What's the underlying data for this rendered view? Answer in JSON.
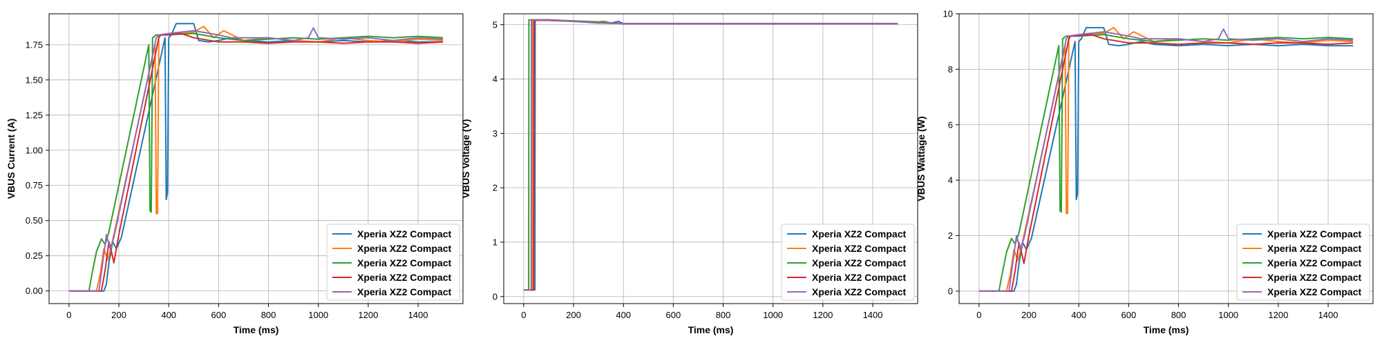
{
  "colors": [
    "#1f77b4",
    "#ff7f0e",
    "#2ca02c",
    "#d62728",
    "#9467bd"
  ],
  "chart_data": [
    {
      "type": "line",
      "xlabel": "Time (ms)",
      "ylabel": "VBUS Current (A)",
      "xlim": [
        -80,
        1580
      ],
      "ylim": [
        -0.09,
        1.97
      ],
      "xticks": [
        0,
        200,
        400,
        600,
        800,
        1000,
        1200,
        1400
      ],
      "yticks": [
        0.0,
        0.25,
        0.5,
        0.75,
        1.0,
        1.25,
        1.5,
        1.75
      ],
      "ytick_labels": [
        "0.00",
        "0.25",
        "0.50",
        "0.75",
        "1.00",
        "1.25",
        "1.50",
        "1.75"
      ],
      "grid": true,
      "legend_position": "lower right",
      "series": [
        {
          "name": "Xperia XZ2 Compact",
          "x": [
            0,
            140,
            150,
            160,
            175,
            190,
            210,
            385,
            390,
            395,
            400,
            410,
            430,
            500,
            520,
            560,
            600,
            650,
            700,
            800,
            900,
            1000,
            1100,
            1200,
            1300,
            1400,
            1500
          ],
          "y": [
            0.0,
            0.0,
            0.05,
            0.2,
            0.35,
            0.3,
            0.38,
            1.8,
            0.65,
            0.7,
            1.8,
            1.82,
            1.9,
            1.9,
            1.78,
            1.77,
            1.78,
            1.8,
            1.78,
            1.77,
            1.78,
            1.77,
            1.78,
            1.77,
            1.78,
            1.77,
            1.77
          ]
        },
        {
          "name": "Xperia XZ2 Compact",
          "x": [
            0,
            110,
            125,
            140,
            155,
            170,
            345,
            350,
            355,
            360,
            370,
            400,
            500,
            540,
            580,
            620,
            700,
            800,
            900,
            1000,
            1100,
            1200,
            1300,
            1400,
            1500
          ],
          "y": [
            0.0,
            0.0,
            0.12,
            0.3,
            0.22,
            0.32,
            1.75,
            0.55,
            0.55,
            1.8,
            1.82,
            1.82,
            1.84,
            1.88,
            1.8,
            1.85,
            1.78,
            1.8,
            1.78,
            1.77,
            1.8,
            1.78,
            1.77,
            1.79,
            1.78
          ]
        },
        {
          "name": "Xperia XZ2 Compact",
          "x": [
            0,
            80,
            90,
            110,
            130,
            145,
            160,
            320,
            325,
            330,
            335,
            350,
            400,
            500,
            600,
            700,
            800,
            900,
            1000,
            1100,
            1200,
            1300,
            1400,
            1500
          ],
          "y": [
            0.0,
            0.0,
            0.1,
            0.28,
            0.37,
            0.33,
            0.42,
            1.75,
            0.57,
            0.56,
            1.8,
            1.82,
            1.82,
            1.83,
            1.8,
            1.78,
            1.79,
            1.8,
            1.79,
            1.8,
            1.81,
            1.8,
            1.81,
            1.8
          ]
        },
        {
          "name": "Xperia XZ2 Compact",
          "x": [
            0,
            130,
            145,
            160,
            170,
            180,
            200,
            360,
            365,
            380,
            450,
            500,
            600,
            700,
            800,
            900,
            1000,
            1100,
            1200,
            1300,
            1400,
            1500
          ],
          "y": [
            0.0,
            0.0,
            0.15,
            0.35,
            0.28,
            0.2,
            0.4,
            1.8,
            1.82,
            1.82,
            1.83,
            1.8,
            1.77,
            1.77,
            1.76,
            1.77,
            1.77,
            1.76,
            1.77,
            1.77,
            1.76,
            1.77
          ]
        },
        {
          "name": "Xperia XZ2 Compact",
          "x": [
            0,
            120,
            135,
            150,
            165,
            180,
            350,
            360,
            400,
            500,
            600,
            650,
            700,
            800,
            900,
            960,
            980,
            1000,
            1100,
            1200,
            1300,
            1400,
            1500
          ],
          "y": [
            0.0,
            0.0,
            0.2,
            0.4,
            0.3,
            0.38,
            1.8,
            1.82,
            1.83,
            1.85,
            1.82,
            1.8,
            1.8,
            1.8,
            1.78,
            1.8,
            1.87,
            1.8,
            1.79,
            1.8,
            1.78,
            1.8,
            1.79
          ]
        }
      ]
    },
    {
      "type": "line",
      "xlabel": "Time (ms)",
      "ylabel": "VBUS Voltage (V)",
      "xlim": [
        -80,
        1580
      ],
      "ylim": [
        -0.13,
        5.2
      ],
      "xticks": [
        0,
        200,
        400,
        600,
        800,
        1000,
        1200,
        1400
      ],
      "yticks": [
        0,
        1,
        2,
        3,
        4,
        5
      ],
      "ytick_labels": [
        "0",
        "1",
        "2",
        "3",
        "4",
        "5"
      ],
      "grid": true,
      "legend_position": "lower right",
      "series": [
        {
          "name": "Xperia XZ2 Compact",
          "x": [
            0,
            45,
            46,
            100,
            200,
            300,
            350,
            380,
            390,
            400,
            500,
            600,
            800,
            1000,
            1200,
            1500
          ],
          "y": [
            0.12,
            0.12,
            5.08,
            5.08,
            5.06,
            5.04,
            5.03,
            5.06,
            5.04,
            5.02,
            5.02,
            5.02,
            5.02,
            5.02,
            5.02,
            5.02
          ]
        },
        {
          "name": "Xperia XZ2 Compact",
          "x": [
            0,
            35,
            36,
            100,
            200,
            300,
            330,
            340,
            360,
            400,
            500,
            800,
            1000,
            1500
          ],
          "y": [
            0.12,
            0.12,
            5.09,
            5.09,
            5.07,
            5.04,
            5.06,
            5.04,
            5.03,
            5.02,
            5.02,
            5.02,
            5.02,
            5.02
          ]
        },
        {
          "name": "Xperia XZ2 Compact",
          "x": [
            0,
            20,
            21,
            100,
            200,
            300,
            320,
            330,
            400,
            500,
            800,
            1000,
            1500
          ],
          "y": [
            0.12,
            0.12,
            5.09,
            5.09,
            5.07,
            5.05,
            5.06,
            5.04,
            5.02,
            5.02,
            5.02,
            5.02,
            5.02
          ]
        },
        {
          "name": "Xperia XZ2 Compact",
          "x": [
            0,
            40,
            41,
            100,
            200,
            300,
            400,
            500,
            800,
            1000,
            1500
          ],
          "y": [
            0.12,
            0.12,
            5.08,
            5.08,
            5.06,
            5.03,
            5.02,
            5.02,
            5.02,
            5.02,
            5.02
          ]
        },
        {
          "name": "Xperia XZ2 Compact",
          "x": [
            0,
            30,
            31,
            100,
            200,
            300,
            400,
            500,
            800,
            1000,
            1500
          ],
          "y": [
            0.12,
            0.12,
            5.09,
            5.09,
            5.06,
            5.03,
            5.02,
            5.02,
            5.02,
            5.02,
            5.02
          ]
        }
      ]
    },
    {
      "type": "line",
      "xlabel": "Time (ms)",
      "ylabel": "VBUS Wattage (W)",
      "xlim": [
        -80,
        1580
      ],
      "ylim": [
        -0.45,
        10.0
      ],
      "xticks": [
        0,
        200,
        400,
        600,
        800,
        1000,
        1200,
        1400
      ],
      "yticks": [
        0,
        2,
        4,
        6,
        8,
        10
      ],
      "ytick_labels": [
        "0",
        "2",
        "4",
        "6",
        "8",
        "10"
      ],
      "grid": true,
      "legend_position": "lower right",
      "series": [
        {
          "name": "Xperia XZ2 Compact",
          "x": [
            0,
            140,
            150,
            160,
            175,
            190,
            210,
            385,
            390,
            395,
            400,
            410,
            430,
            500,
            520,
            560,
            600,
            650,
            700,
            800,
            900,
            1000,
            1100,
            1200,
            1300,
            1400,
            1500
          ],
          "y": [
            0.0,
            0.0,
            0.25,
            1.0,
            1.75,
            1.5,
            1.9,
            9.0,
            3.3,
            3.5,
            9.0,
            9.1,
            9.5,
            9.5,
            8.9,
            8.85,
            8.9,
            9.0,
            8.9,
            8.85,
            8.9,
            8.85,
            8.9,
            8.85,
            8.9,
            8.85,
            8.85
          ]
        },
        {
          "name": "Xperia XZ2 Compact",
          "x": [
            0,
            110,
            125,
            140,
            155,
            170,
            345,
            350,
            355,
            360,
            370,
            400,
            500,
            540,
            580,
            620,
            700,
            800,
            900,
            1000,
            1100,
            1200,
            1300,
            1400,
            1500
          ],
          "y": [
            0.0,
            0.0,
            0.6,
            1.5,
            1.1,
            1.6,
            8.8,
            2.8,
            2.8,
            9.1,
            9.2,
            9.2,
            9.3,
            9.5,
            9.1,
            9.35,
            9.0,
            9.1,
            9.0,
            8.95,
            9.1,
            9.0,
            8.95,
            9.05,
            9.0
          ]
        },
        {
          "name": "Xperia XZ2 Compact",
          "x": [
            0,
            80,
            90,
            110,
            130,
            145,
            160,
            320,
            325,
            330,
            335,
            350,
            400,
            500,
            600,
            700,
            800,
            900,
            1000,
            1100,
            1200,
            1300,
            1400,
            1500
          ],
          "y": [
            0.0,
            0.0,
            0.5,
            1.4,
            1.9,
            1.7,
            2.1,
            8.85,
            2.9,
            2.85,
            9.1,
            9.2,
            9.2,
            9.25,
            9.1,
            9.0,
            9.05,
            9.1,
            9.05,
            9.1,
            9.15,
            9.1,
            9.15,
            9.1
          ]
        },
        {
          "name": "Xperia XZ2 Compact",
          "x": [
            0,
            130,
            145,
            160,
            170,
            180,
            200,
            360,
            365,
            380,
            450,
            500,
            600,
            700,
            800,
            900,
            1000,
            1100,
            1200,
            1300,
            1400,
            1500
          ],
          "y": [
            0.0,
            0.0,
            0.75,
            1.75,
            1.4,
            1.0,
            2.0,
            9.1,
            9.2,
            9.2,
            9.25,
            9.1,
            8.95,
            8.95,
            8.9,
            8.95,
            8.95,
            8.9,
            8.95,
            8.95,
            8.9,
            8.95
          ]
        },
        {
          "name": "Xperia XZ2 Compact",
          "x": [
            0,
            120,
            135,
            150,
            165,
            180,
            350,
            360,
            400,
            500,
            600,
            650,
            700,
            800,
            900,
            960,
            980,
            1000,
            1100,
            1200,
            1300,
            1400,
            1500
          ],
          "y": [
            0.0,
            0.0,
            1.0,
            2.0,
            1.5,
            1.9,
            9.1,
            9.2,
            9.25,
            9.35,
            9.2,
            9.1,
            9.1,
            9.1,
            9.0,
            9.1,
            9.45,
            9.1,
            9.05,
            9.1,
            9.0,
            9.1,
            9.05
          ]
        }
      ]
    }
  ]
}
